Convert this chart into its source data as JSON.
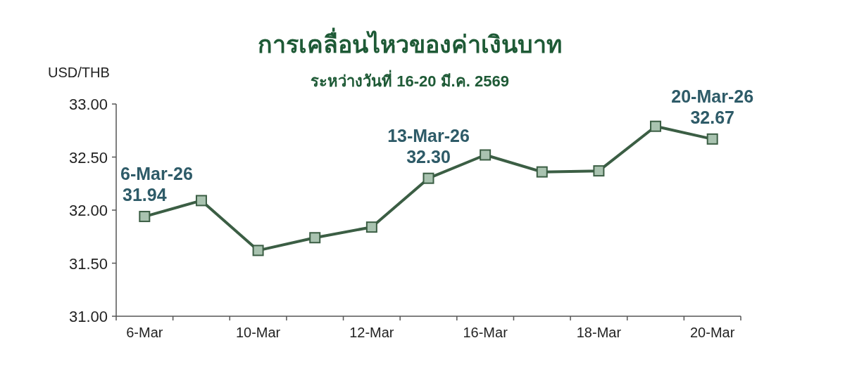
{
  "chart_data": {
    "type": "line",
    "title": "การเคลื่อนไหวของค่าเงินบาท",
    "subtitle": "ระหว่างวันที่ 16-20 มี.ค. 2569",
    "ylabel": "USD/THB",
    "categories": [
      "6-Mar",
      null,
      "10-Mar",
      null,
      "12-Mar",
      null,
      "16-Mar",
      null,
      "18-Mar",
      null,
      "20-Mar"
    ],
    "series": [
      {
        "color": "#3b5e44",
        "values": [
          31.94,
          32.09,
          31.62,
          31.74,
          31.84,
          32.3,
          32.52,
          32.36,
          32.37,
          32.79,
          32.67
        ]
      }
    ],
    "marker": "square",
    "line_style": "solid",
    "grid": false,
    "ylim": [
      31,
      33
    ],
    "yticks": [
      {
        "value": 31,
        "label": "31.00"
      },
      {
        "value": 31.5,
        "label": "31.50"
      },
      {
        "value": 32,
        "label": "32.00"
      },
      {
        "value": 32.5,
        "label": "32.50"
      },
      {
        "value": 33,
        "label": "33.00"
      }
    ],
    "annotations": [
      {
        "text": "6-Mar-26\n31.94",
        "x": "6-Mar",
        "y": 31.94
      },
      {
        "text": "13-Mar-26\n32.30",
        "y": 32.3
      },
      {
        "text": "20-Mar-26\n32.67",
        "x": "20-Mar",
        "y": 32.67
      }
    ]
  }
}
